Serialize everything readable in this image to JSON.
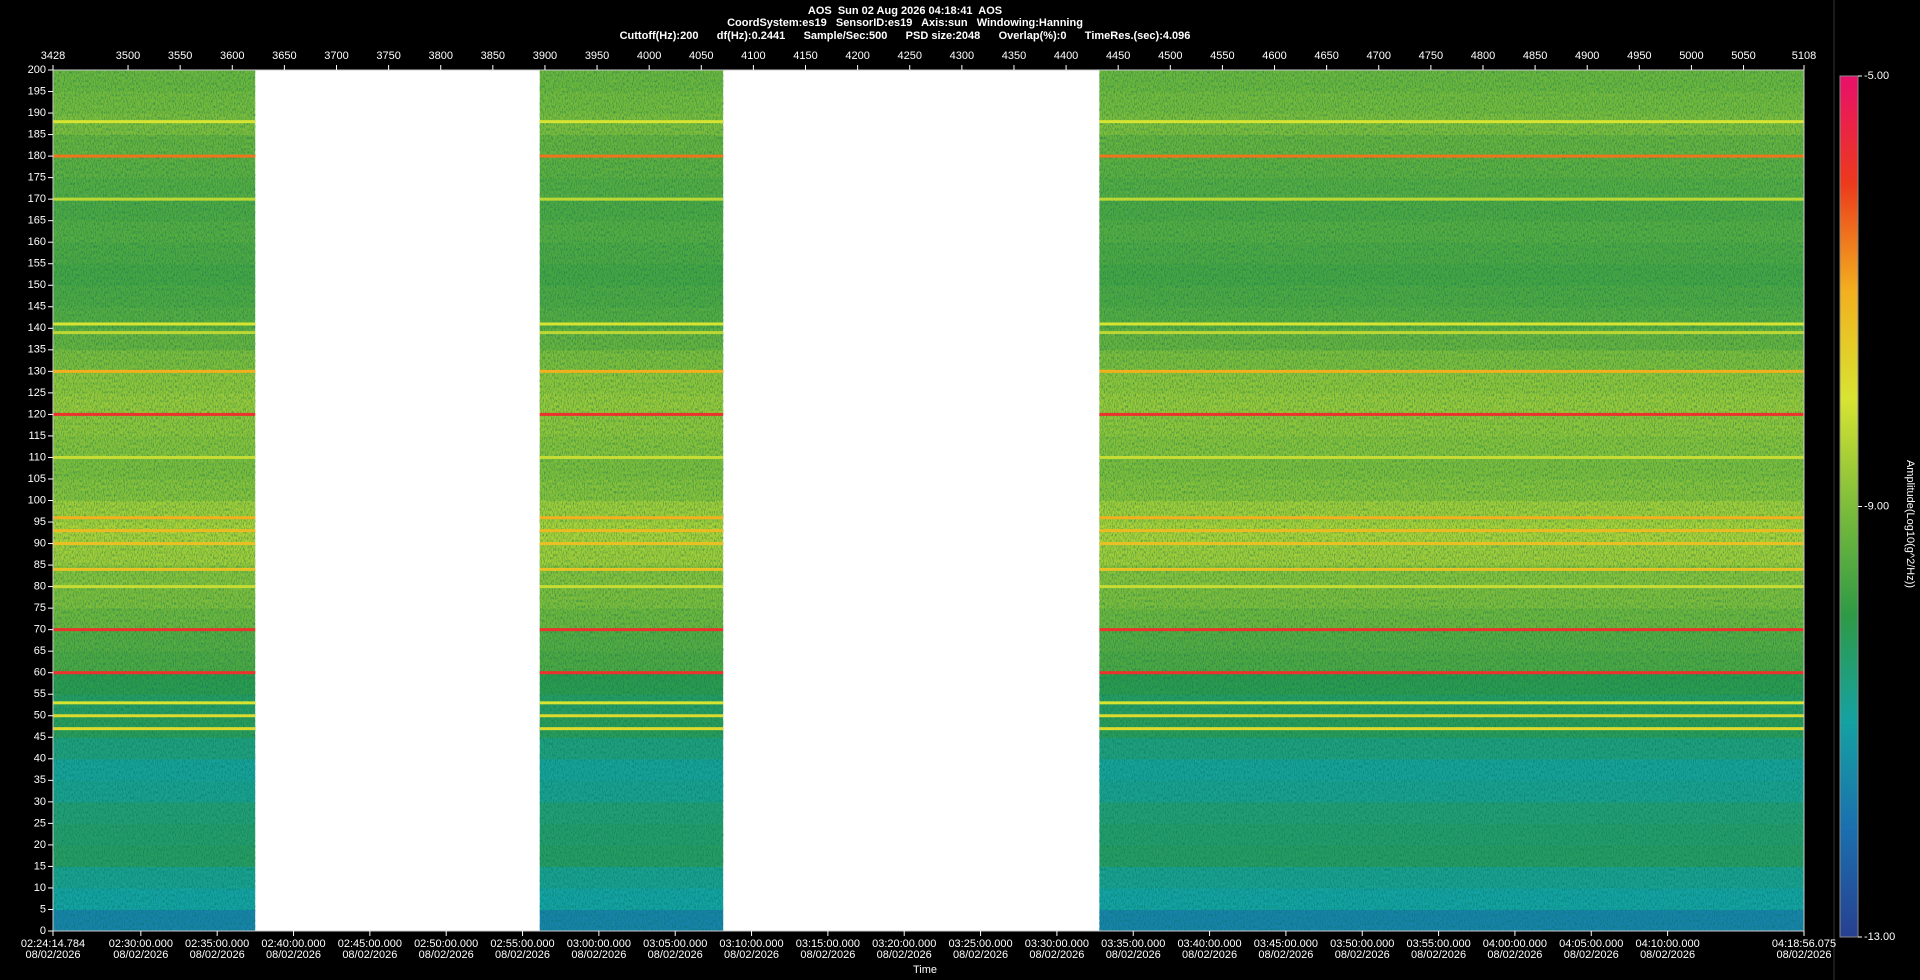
{
  "chart_data": {
    "type": "spectrogram",
    "title_lines": [
      "AOS  Sun 02 Aug 2026 04:18:41  AOS",
      "CoordSystem:es19   SensorID:es19   Axis:sun   Windowing:Hanning",
      "Cuttoff(Hz):200      df(Hz):0.2441      Sample/Sec:500      PSD size:2048      Overlap(%):0      TimeRes.(sec):4.096"
    ],
    "x_label": "Time",
    "colorbar_label": "Amplitude(Log10(g^2/Hz))",
    "xlim": [
      3428,
      5108
    ],
    "xticks": [
      3428,
      3500,
      3550,
      3600,
      3650,
      3700,
      3750,
      3800,
      3850,
      3900,
      3950,
      4000,
      4050,
      4100,
      4150,
      4200,
      4250,
      4300,
      4350,
      4400,
      4450,
      4500,
      4550,
      4600,
      4650,
      4700,
      4750,
      4800,
      4850,
      4900,
      4950,
      5000,
      5050,
      5108
    ],
    "x2ticks": [
      {
        "value": 3428,
        "label": "02:24:14.784",
        "date": "08/02/2026"
      },
      {
        "value": 3512.28,
        "label": "02:30:00.000",
        "date": "08/02/2026"
      },
      {
        "value": 3585.52,
        "label": "02:35:00.000",
        "date": "08/02/2026"
      },
      {
        "value": 3658.77,
        "label": "02:40:00.000",
        "date": "08/02/2026"
      },
      {
        "value": 3732.01,
        "label": "02:45:00.000",
        "date": "08/02/2026"
      },
      {
        "value": 3805.25,
        "label": "02:50:00.000",
        "date": "08/02/2026"
      },
      {
        "value": 3878.49,
        "label": "02:55:00.000",
        "date": "08/02/2026"
      },
      {
        "value": 3951.73,
        "label": "03:00:00.000",
        "date": "08/02/2026"
      },
      {
        "value": 4024.98,
        "label": "03:05:00.000",
        "date": "08/02/2026"
      },
      {
        "value": 4098.22,
        "label": "03:10:00.000",
        "date": "08/02/2026"
      },
      {
        "value": 4171.46,
        "label": "03:15:00.000",
        "date": "08/02/2026"
      },
      {
        "value": 4244.7,
        "label": "03:20:00.000",
        "date": "08/02/2026"
      },
      {
        "value": 4317.95,
        "label": "03:25:00.000",
        "date": "08/02/2026"
      },
      {
        "value": 4391.19,
        "label": "03:30:00.000",
        "date": "08/02/2026"
      },
      {
        "value": 4464.43,
        "label": "03:35:00.000",
        "date": "08/02/2026"
      },
      {
        "value": 4537.67,
        "label": "03:40:00.000",
        "date": "08/02/2026"
      },
      {
        "value": 4610.91,
        "label": "03:45:00.000",
        "date": "08/02/2026"
      },
      {
        "value": 4684.16,
        "label": "03:50:00.000",
        "date": "08/02/2026"
      },
      {
        "value": 4757.4,
        "label": "03:55:00.000",
        "date": "08/02/2026"
      },
      {
        "value": 4830.64,
        "label": "04:00:00.000",
        "date": "08/02/2026"
      },
      {
        "value": 4903.88,
        "label": "04:05:00.000",
        "date": "08/02/2026"
      },
      {
        "value": 4977.13,
        "label": "04:10:00.000",
        "date": "08/02/2026"
      },
      {
        "value": 5108,
        "label": "04:18:56.075",
        "date": "08/02/2026"
      }
    ],
    "ylim": [
      0,
      200
    ],
    "yticks": [
      0,
      5,
      10,
      15,
      20,
      25,
      30,
      35,
      40,
      45,
      50,
      55,
      60,
      65,
      70,
      75,
      80,
      85,
      90,
      95,
      100,
      105,
      110,
      115,
      120,
      125,
      130,
      135,
      140,
      145,
      150,
      155,
      160,
      165,
      170,
      175,
      180,
      185,
      190,
      195,
      200
    ],
    "clim": [
      -13,
      -5
    ],
    "cticks": [
      {
        "value": -5,
        "label": "-5.00"
      },
      {
        "value": -9,
        "label": "-9.00"
      },
      {
        "value": -13,
        "label": "-13.00"
      }
    ],
    "colormap": [
      "#27408f",
      "#1b6fae",
      "#14a2a2",
      "#2f9a45",
      "#7dbd3a",
      "#d8e432",
      "#f2b01e",
      "#ec3a1c",
      "#e8106a"
    ],
    "segments": [
      [
        3428,
        3622
      ],
      [
        3895,
        4071
      ],
      [
        4432,
        5108
      ]
    ],
    "frequency_bins": [
      0,
      5,
      10,
      15,
      20,
      25,
      30,
      35,
      40,
      45,
      50,
      55,
      60,
      65,
      70,
      75,
      80,
      85,
      90,
      95,
      100,
      105,
      110,
      115,
      120,
      125,
      130,
      135,
      140,
      145,
      150,
      155,
      160,
      165,
      170,
      175,
      180,
      185,
      190,
      195,
      200
    ],
    "amplitudes": [
      -11.6,
      -11.0,
      -10.8,
      -10.3,
      -10.4,
      -10.5,
      -10.8,
      -10.9,
      -10.6,
      -10.2,
      -10.3,
      -10.1,
      -9.6,
      -9.5,
      -9.2,
      -9.0,
      -8.9,
      -8.6,
      -8.5,
      -8.6,
      -8.9,
      -9.0,
      -8.9,
      -8.8,
      -8.7,
      -8.8,
      -9.0,
      -9.3,
      -9.5,
      -9.6,
      -9.7,
      -9.6,
      -9.5,
      -9.6,
      -9.5,
      -9.4,
      -9.3,
      -9.0,
      -9.1,
      -9.2
    ],
    "line_frequencies": [
      188,
      180,
      170,
      141,
      139,
      130,
      120,
      110,
      96,
      93,
      90,
      84,
      80,
      70,
      60,
      53,
      50,
      47
    ],
    "line_amplitudes": [
      -8.0,
      -6.5,
      -8.3,
      -8.0,
      -8.3,
      -7.0,
      -5.8,
      -8.2,
      -7.0,
      -7.2,
      -7.3,
      -7.3,
      -8.2,
      -5.8,
      -5.8,
      -8.0,
      -7.8,
      -7.8
    ]
  }
}
